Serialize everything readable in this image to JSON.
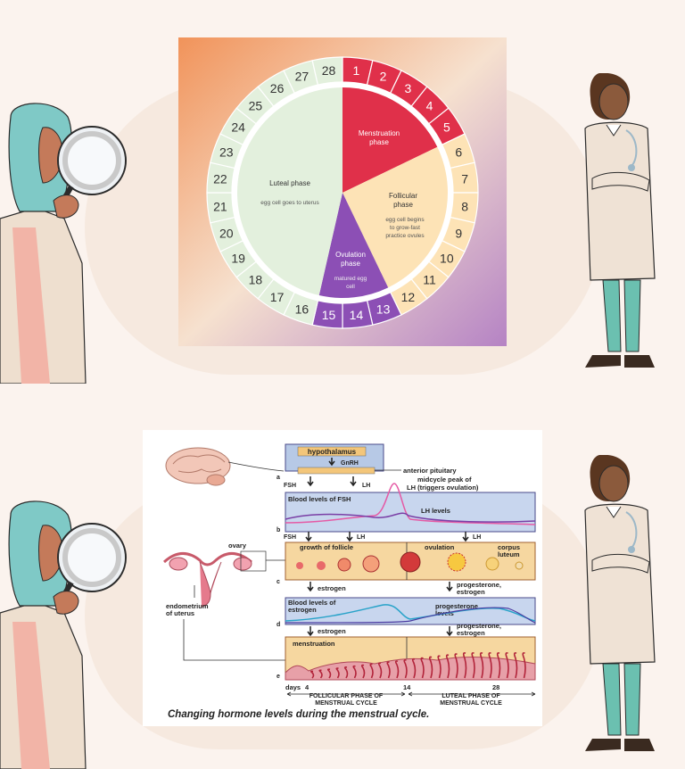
{
  "cycle": {
    "days": [
      "1",
      "2",
      "3",
      "4",
      "5",
      "6",
      "7",
      "8",
      "9",
      "10",
      "11",
      "12",
      "13",
      "14",
      "15",
      "16",
      "17",
      "18",
      "19",
      "20",
      "21",
      "22",
      "23",
      "24",
      "25",
      "26",
      "27",
      "28"
    ],
    "phases": {
      "menstruation": {
        "title1": "Menstruation",
        "title2": "phase"
      },
      "follicular": {
        "title1": "Follicular",
        "title2": "phase",
        "desc1": "egg cell begins",
        "desc2": "to grow-fast",
        "desc3": "practice ovules"
      },
      "ovulation": {
        "title1": "Ovulation",
        "title2": "phase",
        "desc1": "matured egg",
        "desc2": "cell"
      },
      "luteal": {
        "title": "Luteal phase",
        "desc": "egg cell goes to uterus"
      }
    },
    "colors": {
      "menstruation": "#e0304a",
      "follicular": "#fde3b6",
      "ovulation": "#8c4fb5",
      "luteal": "#e3f0dd"
    }
  },
  "hormone": {
    "hypothalamus": "hypothalamus",
    "gnrh": "GnRH",
    "anterior_pituitary": "anterior pituitary",
    "fsh": "FSH",
    "lh": "LH",
    "midcycle1": "midcycle peak of",
    "midcycle2": "LH (triggers ovulation)",
    "blood_fsh": "Blood levels of FSH",
    "lh_levels": "LH levels",
    "growth": "growth of follicle",
    "ovulation": "ovulation",
    "corpus1": "corpus",
    "corpus2": "luteum",
    "ovary": "ovary",
    "estrogen": "estrogen",
    "prog_estr1": "progesterone,",
    "prog_estr2": "estrogen",
    "blood_estr1": "Blood levels of",
    "blood_estr2": "estrogen",
    "prog_levels1": "progesterone",
    "prog_levels2": "levels",
    "endo1": "endometrium",
    "endo2": "of uterus",
    "menstruation": "menstruation",
    "days": "days",
    "d4": "4",
    "d14": "14",
    "d28": "28",
    "foll1": "FOLLICULAR PHASE OF",
    "foll2": "MENSTRUAL CYCLE",
    "lut1": "LUTEAL PHASE OF",
    "lut2": "MENSTRUAL CYCLE",
    "a": "a",
    "b": "b",
    "c": "c",
    "d": "d",
    "e": "e",
    "caption": "Changing hormone levels during the menstrual cycle."
  }
}
